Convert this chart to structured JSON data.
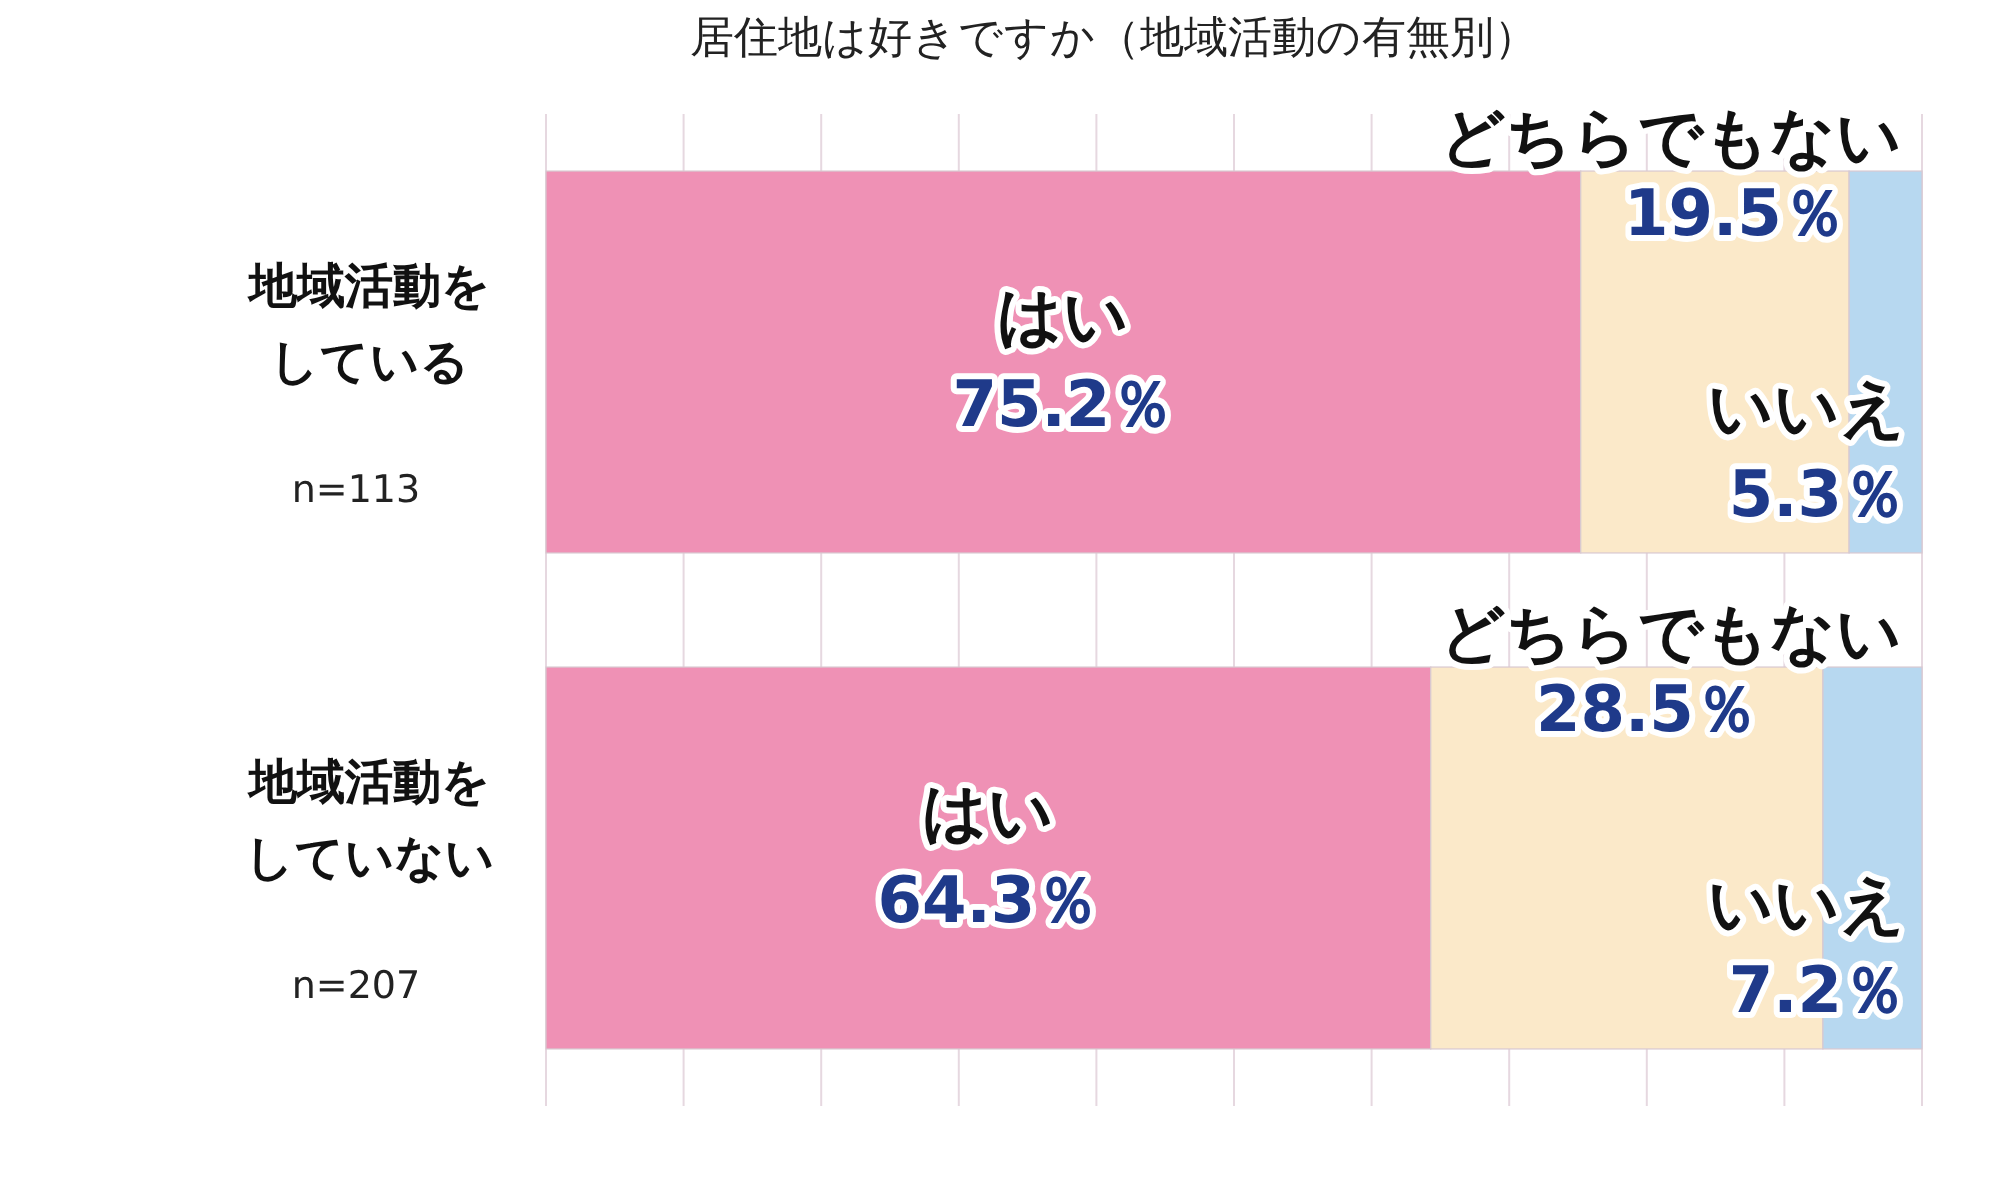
{
  "chart_data": {
    "type": "bar",
    "orientation": "horizontal",
    "stacked": true,
    "title": "居住地は好きですか（地域活動の有無別）",
    "categories": [
      "地域活動をしている",
      "地域活動をしていない"
    ],
    "series": [
      {
        "name": "はい",
        "color": "#ef91b5",
        "values": [
          75.2,
          64.3
        ],
        "value_labels": [
          "75.2％",
          "64.3％"
        ]
      },
      {
        "name": "どちらでもない",
        "color": "#fbe9c9",
        "values": [
          19.5,
          28.5
        ],
        "value_labels": [
          "19.5％",
          "28.5％"
        ]
      },
      {
        "name": "いいえ",
        "color": "#b7d8f0",
        "values": [
          5.3,
          7.2
        ],
        "value_labels": [
          "5.3％",
          "7.2％"
        ]
      }
    ],
    "xlim": [
      0,
      100
    ],
    "xticks": [
      {
        "value": 0,
        "label": null
      },
      {
        "value": 10,
        "label": null
      },
      {
        "value": 20,
        "label": null
      },
      {
        "value": 30,
        "label": null
      },
      {
        "value": 40,
        "label": null
      },
      {
        "value": 50,
        "label": null
      },
      {
        "value": 60,
        "label": null
      },
      {
        "value": 70,
        "label": null
      },
      {
        "value": 80,
        "label": null
      },
      {
        "value": 90,
        "label": null
      },
      {
        "value": 100,
        "label": null
      }
    ],
    "grid": "x",
    "tick_labels": "y",
    "annotations": [
      "n=113",
      "n=207"
    ]
  }
}
